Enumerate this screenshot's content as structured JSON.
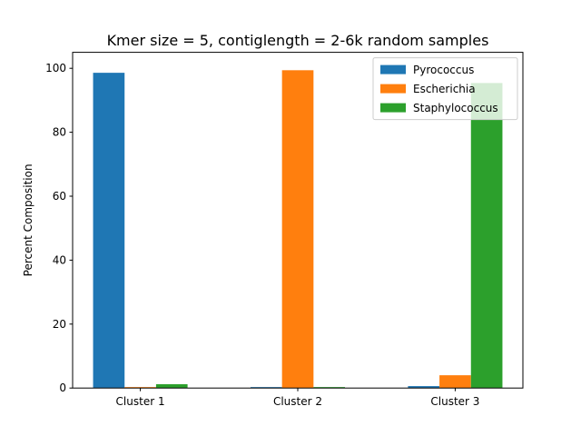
{
  "chart_data": {
    "type": "bar",
    "title": "Kmer size = 5, contiglength = 2-6k random samples",
    "xlabel": "",
    "ylabel": "Percent Composition",
    "categories": [
      "Cluster 1",
      "Cluster 2",
      "Cluster 3"
    ],
    "series": [
      {
        "name": "Pyrococcus",
        "color": "#1f77b4",
        "values": [
          98.6,
          0.3,
          0.6
        ]
      },
      {
        "name": "Escherichia",
        "color": "#ff7f0e",
        "values": [
          0.3,
          99.4,
          4.0
        ]
      },
      {
        "name": "Staphylococcus",
        "color": "#2ca02c",
        "values": [
          1.2,
          0.3,
          95.4
        ]
      }
    ],
    "ylim": [
      0,
      105
    ],
    "yticks": [
      0,
      20,
      40,
      60,
      80,
      100
    ],
    "grid": false,
    "legend": "top-right"
  }
}
